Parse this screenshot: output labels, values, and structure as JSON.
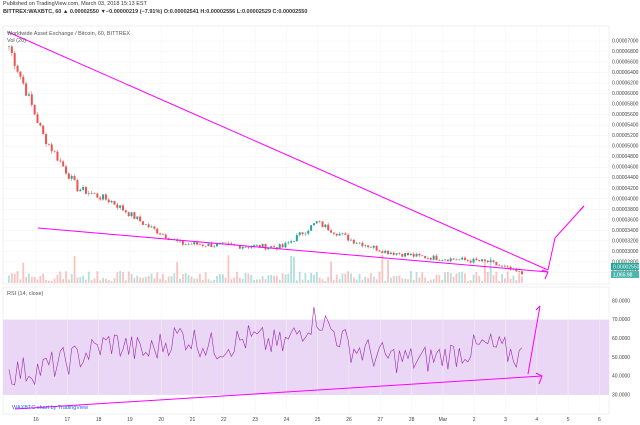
{
  "header": {
    "published_line": "Published on TradingView.com, March 03, 2018 15:13 EST",
    "symbol_line": "BITTREX:WAXBTC, 60  ▲ 0.00002550  ▼−0.00000219 (−7.91%)  O:0.00002541  H:0.00002556  L:0.00002529  C:0.00002550"
  },
  "price_pane": {
    "title": "Worldwide Asset Exchange / Bitcoin, 60, BITTREX",
    "volume_label": "Vol (20)",
    "price_ticks": [
      "0.00007000",
      "0.00006800",
      "0.00006600",
      "0.00006400",
      "0.00006200",
      "0.00006000",
      "0.00005800",
      "0.00005600",
      "0.00005400",
      "0.00005200",
      "0.00005000",
      "0.00004800",
      "0.00004600",
      "0.00004400",
      "0.00004200",
      "0.00004000",
      "0.00003800",
      "0.00003600",
      "0.00003400",
      "0.00003200",
      "0.00003000",
      "0.00002800",
      "0.00002600"
    ],
    "last_price_tag": "0.00002550",
    "volume_tag": "1,065.98"
  },
  "rsi_pane": {
    "label": "RSI (14, close)",
    "ticks": [
      "80.0000",
      "70.0000",
      "60.0000",
      "50.0000",
      "40.0000",
      "30.0000"
    ]
  },
  "x_ticks": [
    "16",
    "17",
    "18",
    "19",
    "20",
    "21",
    "22",
    "23",
    "24",
    "25",
    "26",
    "27",
    "28",
    "Mar",
    "2",
    "3",
    "4",
    "5",
    "6"
  ],
  "watermark": "WAXBTC chart by TradingView",
  "colors": {
    "up_candle": "#26a69a",
    "down_candle": "#ef5350",
    "trendline": "#ff00ff",
    "rsi_line": "#9c27b0",
    "rsi_band": "#ead7f5"
  },
  "chart_data": {
    "type": "line",
    "title": "Worldwide Asset Exchange / Bitcoin, 60, BITTREX",
    "x": [
      "16",
      "17",
      "18",
      "19",
      "20",
      "21",
      "22",
      "23",
      "24",
      "25",
      "26",
      "27",
      "28",
      "Mar",
      "2",
      "3"
    ],
    "series": [
      {
        "values": [
          6.9e-05,
          5.2e-05,
          4.2e-05,
          3.95e-05,
          3.5e-05,
          3.15e-05,
          3.12e-05,
          3.1e-05,
          3.08e-05,
          3.55e-05,
          3.22e-05,
          3e-05,
          2.9e-05,
          2.85e-05,
          2.8e-05,
          2.57e-05
        ]
      }
    ],
    "ylim": [
      2.55e-05,
      7.02e-05
    ],
    "rsi": {
      "label": "RSI (14, close)",
      "values": [
        42,
        44,
        50,
        58,
        52,
        62,
        55,
        60,
        56,
        72,
        55,
        50,
        48,
        52,
        56,
        50
      ],
      "band": [
        30,
        70
      ],
      "ylim": [
        22,
        82
      ]
    }
  }
}
